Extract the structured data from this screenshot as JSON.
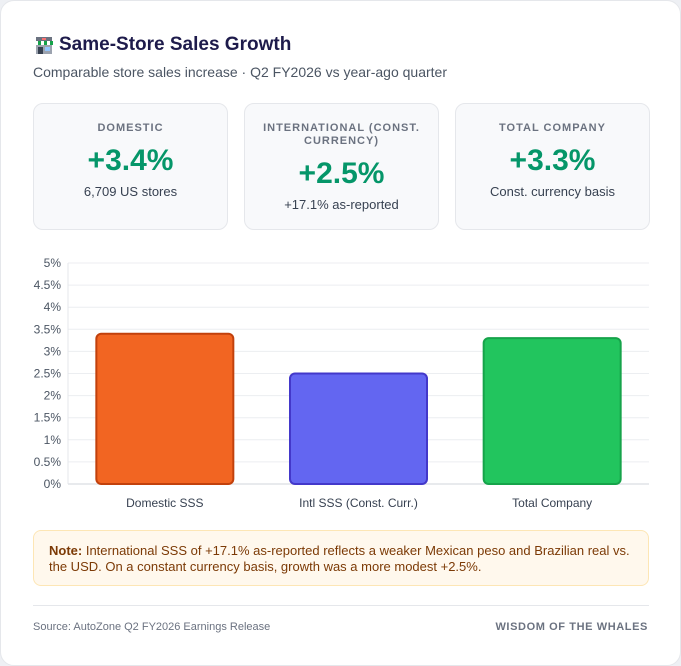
{
  "header": {
    "title": "Same-Store Sales Growth",
    "subtitle": "Comparable store sales increase · Q2 FY2026 vs year-ago quarter",
    "icon": "store-icon"
  },
  "kpis": [
    {
      "label": "DOMESTIC",
      "value": "+3.4%",
      "note": "6,709 US stores"
    },
    {
      "label": "INTERNATIONAL (CONST. CURRENCY)",
      "value": "+2.5%",
      "note": "+17.1% as-reported"
    },
    {
      "label": "TOTAL COMPANY",
      "value": "+3.3%",
      "note": "Const. currency basis"
    }
  ],
  "chart_data": {
    "type": "bar",
    "categories": [
      "Domestic SSS",
      "Intl SSS (Const. Curr.)",
      "Total Company"
    ],
    "values": [
      3.4,
      2.5,
      3.3
    ],
    "colors": [
      "#f26522",
      "#6366f1",
      "#22c55e"
    ],
    "border_colors": [
      "#c2410c",
      "#4338ca",
      "#16a34a"
    ],
    "ylim": [
      0,
      5
    ],
    "yticks": [
      "0%",
      "0.5%",
      "1%",
      "1.5%",
      "2%",
      "2.5%",
      "3%",
      "3.5%",
      "4%",
      "4.5%",
      "5%"
    ],
    "grid": true,
    "legend": "none"
  },
  "note": {
    "label": "Note:",
    "text": " International SSS of +17.1% as-reported reflects a weaker Mexican peso and Brazilian real vs. the USD. On a constant currency basis, growth was a more modest +2.5%."
  },
  "footer": {
    "source": "Source: AutoZone Q2 FY2026 Earnings Release",
    "brand": "WISDOM OF THE WHALES"
  }
}
